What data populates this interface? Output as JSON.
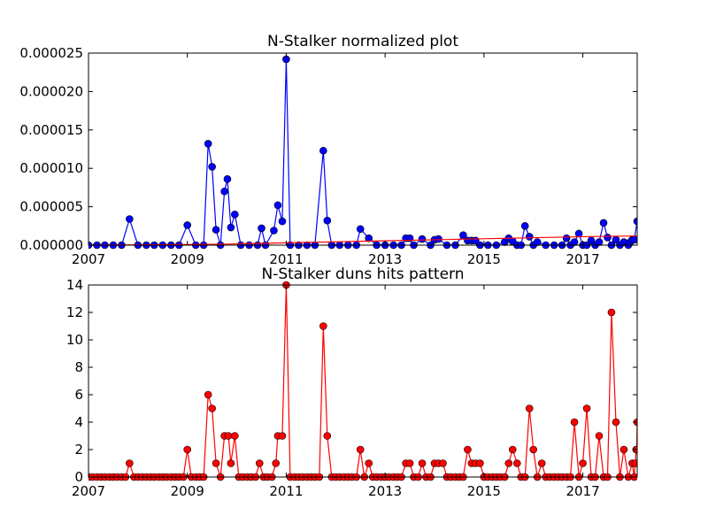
{
  "chart_data": [
    {
      "type": "line",
      "title": "N-Stalker normalized plot",
      "xlabel": "",
      "ylabel": "",
      "x_tick_labels": [
        "2007",
        "2009",
        "2011",
        "2013",
        "2015",
        "2017"
      ],
      "x_tick_values": [
        2007,
        2009,
        2011,
        2013,
        2015,
        2017
      ],
      "xlim": [
        2007.0,
        2018.1
      ],
      "y_tick_labels": [
        "0.000000",
        "0.000005",
        "0.000010",
        "0.000015",
        "0.000020",
        "0.000025"
      ],
      "y_tick_values": [
        0,
        5e-06,
        1e-05,
        1.5e-05,
        2e-05,
        2.5e-05
      ],
      "ylim": [
        0,
        2.5e-05
      ],
      "grid": false,
      "series": [
        {
          "color": "#0000ff",
          "marker": "circle",
          "points": [
            [
              2007.0,
              0
            ],
            [
              2007.17,
              0
            ],
            [
              2007.33,
              0
            ],
            [
              2007.5,
              0
            ],
            [
              2007.67,
              0
            ],
            [
              2007.83,
              3.4e-06
            ],
            [
              2008.0,
              0
            ],
            [
              2008.17,
              0
            ],
            [
              2008.33,
              0
            ],
            [
              2008.5,
              0
            ],
            [
              2008.67,
              0
            ],
            [
              2008.83,
              0
            ],
            [
              2009.0,
              2.6e-06
            ],
            [
              2009.17,
              0
            ],
            [
              2009.33,
              0
            ],
            [
              2009.42,
              1.32e-05
            ],
            [
              2009.5,
              1.02e-05
            ],
            [
              2009.58,
              2e-06
            ],
            [
              2009.67,
              0
            ],
            [
              2009.75,
              7e-06
            ],
            [
              2009.81,
              8.6e-06
            ],
            [
              2009.88,
              2.3e-06
            ],
            [
              2009.96,
              4e-06
            ],
            [
              2010.08,
              0
            ],
            [
              2010.25,
              0
            ],
            [
              2010.42,
              0
            ],
            [
              2010.5,
              2.2e-06
            ],
            [
              2010.58,
              0
            ],
            [
              2010.75,
              1.9e-06
            ],
            [
              2010.83,
              5.2e-06
            ],
            [
              2010.92,
              3.1e-06
            ],
            [
              2011.0,
              2.42e-05
            ],
            [
              2011.08,
              0
            ],
            [
              2011.25,
              0
            ],
            [
              2011.42,
              0
            ],
            [
              2011.58,
              0
            ],
            [
              2011.75,
              1.23e-05
            ],
            [
              2011.83,
              3.2e-06
            ],
            [
              2011.92,
              0
            ],
            [
              2012.08,
              0
            ],
            [
              2012.25,
              0
            ],
            [
              2012.42,
              0
            ],
            [
              2012.5,
              2.1e-06
            ],
            [
              2012.67,
              9e-07
            ],
            [
              2012.83,
              0
            ],
            [
              2013.0,
              0
            ],
            [
              2013.17,
              0
            ],
            [
              2013.33,
              0
            ],
            [
              2013.42,
              9e-07
            ],
            [
              2013.5,
              9e-07
            ],
            [
              2013.58,
              0
            ],
            [
              2013.75,
              8e-07
            ],
            [
              2013.92,
              0
            ],
            [
              2014.0,
              7e-07
            ],
            [
              2014.08,
              8e-07
            ],
            [
              2014.25,
              0
            ],
            [
              2014.42,
              0
            ],
            [
              2014.58,
              1.3e-06
            ],
            [
              2014.67,
              6e-07
            ],
            [
              2014.75,
              6e-07
            ],
            [
              2014.83,
              6e-07
            ],
            [
              2014.92,
              0
            ],
            [
              2015.08,
              0
            ],
            [
              2015.25,
              0
            ],
            [
              2015.42,
              4e-07
            ],
            [
              2015.5,
              9e-07
            ],
            [
              2015.58,
              5e-07
            ],
            [
              2015.67,
              0
            ],
            [
              2015.75,
              0
            ],
            [
              2015.83,
              2.5e-06
            ],
            [
              2015.92,
              1.1e-06
            ],
            [
              2016.0,
              0
            ],
            [
              2016.08,
              4e-07
            ],
            [
              2016.25,
              0
            ],
            [
              2016.42,
              0
            ],
            [
              2016.58,
              0
            ],
            [
              2016.67,
              9e-07
            ],
            [
              2016.75,
              0
            ],
            [
              2016.83,
              4e-07
            ],
            [
              2016.92,
              1.5e-06
            ],
            [
              2017.0,
              0
            ],
            [
              2017.08,
              0
            ],
            [
              2017.17,
              6e-07
            ],
            [
              2017.25,
              0
            ],
            [
              2017.33,
              4e-07
            ],
            [
              2017.42,
              2.9e-06
            ],
            [
              2017.5,
              1e-06
            ],
            [
              2017.58,
              0
            ],
            [
              2017.67,
              7e-07
            ],
            [
              2017.75,
              0
            ],
            [
              2017.83,
              4e-07
            ],
            [
              2017.92,
              0
            ],
            [
              2017.96,
              4e-07
            ],
            [
              2018.0,
              7e-07
            ],
            [
              2018.04,
              7e-07
            ],
            [
              2018.1,
              3.1e-06
            ]
          ]
        },
        {
          "color": "#ff0000",
          "marker": "none",
          "points": [
            [
              2007.0,
              0
            ],
            [
              2009.5,
              1e-07
            ],
            [
              2011.0,
              3e-07
            ],
            [
              2012.5,
              5e-07
            ],
            [
              2014.0,
              7e-07
            ],
            [
              2015.5,
              9e-07
            ],
            [
              2017.0,
              1.1e-06
            ],
            [
              2018.1,
              1.2e-06
            ]
          ]
        }
      ]
    },
    {
      "type": "line",
      "title": "N-Stalker duns hits pattern",
      "xlabel": "",
      "ylabel": "",
      "x_tick_labels": [
        "2007",
        "2009",
        "2011",
        "2013",
        "2015",
        "2017"
      ],
      "x_tick_values": [
        2007,
        2009,
        2011,
        2013,
        2015,
        2017
      ],
      "xlim": [
        2007.0,
        2018.1
      ],
      "y_tick_labels": [
        "0",
        "2",
        "4",
        "6",
        "8",
        "10",
        "12",
        "14"
      ],
      "y_tick_values": [
        0,
        2,
        4,
        6,
        8,
        10,
        12,
        14
      ],
      "ylim": [
        0,
        14
      ],
      "grid": false,
      "series": [
        {
          "color": "#ff0000",
          "marker": "circle",
          "points": [
            [
              2007.0,
              0
            ],
            [
              2007.08,
              0
            ],
            [
              2007.17,
              0
            ],
            [
              2007.25,
              0
            ],
            [
              2007.33,
              0
            ],
            [
              2007.42,
              0
            ],
            [
              2007.5,
              0
            ],
            [
              2007.58,
              0
            ],
            [
              2007.67,
              0
            ],
            [
              2007.75,
              0
            ],
            [
              2007.83,
              1
            ],
            [
              2007.92,
              0
            ],
            [
              2008.0,
              0
            ],
            [
              2008.08,
              0
            ],
            [
              2008.17,
              0
            ],
            [
              2008.25,
              0
            ],
            [
              2008.33,
              0
            ],
            [
              2008.42,
              0
            ],
            [
              2008.5,
              0
            ],
            [
              2008.58,
              0
            ],
            [
              2008.67,
              0
            ],
            [
              2008.75,
              0
            ],
            [
              2008.83,
              0
            ],
            [
              2008.92,
              0
            ],
            [
              2009.0,
              2
            ],
            [
              2009.08,
              0
            ],
            [
              2009.17,
              0
            ],
            [
              2009.25,
              0
            ],
            [
              2009.33,
              0
            ],
            [
              2009.42,
              6
            ],
            [
              2009.5,
              5
            ],
            [
              2009.58,
              1
            ],
            [
              2009.67,
              0
            ],
            [
              2009.75,
              3
            ],
            [
              2009.83,
              3
            ],
            [
              2009.88,
              1
            ],
            [
              2009.96,
              3
            ],
            [
              2010.04,
              0
            ],
            [
              2010.12,
              0
            ],
            [
              2010.21,
              0
            ],
            [
              2010.29,
              0
            ],
            [
              2010.38,
              0
            ],
            [
              2010.46,
              1
            ],
            [
              2010.54,
              0
            ],
            [
              2010.62,
              0
            ],
            [
              2010.71,
              0
            ],
            [
              2010.79,
              1
            ],
            [
              2010.83,
              3
            ],
            [
              2010.92,
              3
            ],
            [
              2011.0,
              14
            ],
            [
              2011.08,
              0
            ],
            [
              2011.17,
              0
            ],
            [
              2011.25,
              0
            ],
            [
              2011.33,
              0
            ],
            [
              2011.42,
              0
            ],
            [
              2011.5,
              0
            ],
            [
              2011.58,
              0
            ],
            [
              2011.67,
              0
            ],
            [
              2011.75,
              11
            ],
            [
              2011.83,
              3
            ],
            [
              2011.92,
              0
            ],
            [
              2012.0,
              0
            ],
            [
              2012.08,
              0
            ],
            [
              2012.17,
              0
            ],
            [
              2012.25,
              0
            ],
            [
              2012.33,
              0
            ],
            [
              2012.42,
              0
            ],
            [
              2012.5,
              2
            ],
            [
              2012.58,
              0
            ],
            [
              2012.67,
              1
            ],
            [
              2012.75,
              0
            ],
            [
              2012.83,
              0
            ],
            [
              2012.92,
              0
            ],
            [
              2013.0,
              0
            ],
            [
              2013.08,
              0
            ],
            [
              2013.17,
              0
            ],
            [
              2013.25,
              0
            ],
            [
              2013.33,
              0
            ],
            [
              2013.42,
              1
            ],
            [
              2013.5,
              1
            ],
            [
              2013.58,
              0
            ],
            [
              2013.67,
              0
            ],
            [
              2013.75,
              1
            ],
            [
              2013.83,
              0
            ],
            [
              2013.92,
              0
            ],
            [
              2014.0,
              1
            ],
            [
              2014.08,
              1
            ],
            [
              2014.17,
              1
            ],
            [
              2014.25,
              0
            ],
            [
              2014.33,
              0
            ],
            [
              2014.42,
              0
            ],
            [
              2014.5,
              0
            ],
            [
              2014.58,
              0
            ],
            [
              2014.67,
              2
            ],
            [
              2014.75,
              1
            ],
            [
              2014.83,
              1
            ],
            [
              2014.92,
              1
            ],
            [
              2015.0,
              0
            ],
            [
              2015.08,
              0
            ],
            [
              2015.17,
              0
            ],
            [
              2015.25,
              0
            ],
            [
              2015.33,
              0
            ],
            [
              2015.42,
              0
            ],
            [
              2015.5,
              1
            ],
            [
              2015.58,
              2
            ],
            [
              2015.67,
              1
            ],
            [
              2015.75,
              0
            ],
            [
              2015.83,
              0
            ],
            [
              2015.92,
              5
            ],
            [
              2016.0,
              2
            ],
            [
              2016.08,
              0
            ],
            [
              2016.17,
              1
            ],
            [
              2016.25,
              0
            ],
            [
              2016.33,
              0
            ],
            [
              2016.42,
              0
            ],
            [
              2016.5,
              0
            ],
            [
              2016.58,
              0
            ],
            [
              2016.67,
              0
            ],
            [
              2016.75,
              0
            ],
            [
              2016.83,
              4
            ],
            [
              2016.92,
              0
            ],
            [
              2017.0,
              1
            ],
            [
              2017.08,
              5
            ],
            [
              2017.17,
              0
            ],
            [
              2017.25,
              0
            ],
            [
              2017.33,
              3
            ],
            [
              2017.42,
              0
            ],
            [
              2017.5,
              0
            ],
            [
              2017.58,
              12
            ],
            [
              2017.67,
              4
            ],
            [
              2017.75,
              0
            ],
            [
              2017.83,
              2
            ],
            [
              2017.92,
              0
            ],
            [
              2018.0,
              1
            ],
            [
              2018.04,
              0
            ],
            [
              2018.06,
              1
            ],
            [
              2018.08,
              2
            ],
            [
              2018.09,
              2
            ],
            [
              2018.1,
              4
            ]
          ]
        }
      ]
    }
  ]
}
